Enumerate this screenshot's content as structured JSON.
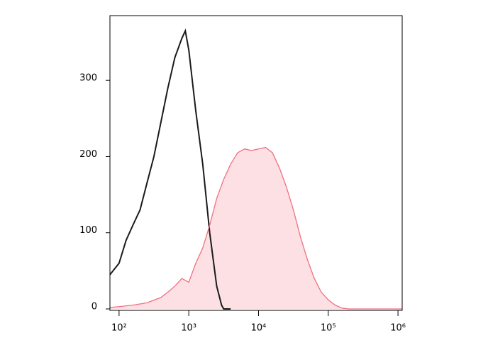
{
  "chart_data": {
    "type": "histogram-overlay",
    "xscale": "log",
    "xlim": [
      74,
      1148154
    ],
    "ylim": [
      0,
      385
    ],
    "xticks": [
      {
        "value": 100,
        "label": "10²"
      },
      {
        "value": 1000,
        "label": "10³"
      },
      {
        "value": 10000,
        "label": "10⁴"
      },
      {
        "value": 100000,
        "label": "10⁵"
      },
      {
        "value": 1000000,
        "label": "10⁶"
      }
    ],
    "yticks": [
      0,
      100,
      200,
      300
    ],
    "series": [
      {
        "color": "#1a1a1a",
        "fill": null,
        "x": [
          74,
          100,
          126,
          158,
          200,
          251,
          316,
          398,
          501,
          631,
          794,
          891,
          1000,
          1122,
          1259,
          1585,
          1995,
          2512,
          2951,
          3162,
          3981
        ],
        "values": [
          45,
          60,
          90,
          110,
          130,
          165,
          200,
          245,
          290,
          330,
          355,
          365,
          340,
          300,
          260,
          190,
          100,
          30,
          5,
          0,
          0
        ]
      },
      {
        "color": "#f07080",
        "fill": "#fde0e3",
        "x": [
          74,
          100,
          158,
          251,
          398,
          501,
          631,
          794,
          1000,
          1259,
          1585,
          1995,
          2512,
          3162,
          3981,
          5012,
          6310,
          7943,
          10000,
          12589,
          15849,
          19953,
          25119,
          31623,
          39811,
          50119,
          63096,
          79433,
          100000,
          125893,
          158489,
          199526,
          1148154
        ],
        "values": [
          2,
          3,
          5,
          8,
          15,
          22,
          30,
          40,
          35,
          60,
          80,
          110,
          145,
          170,
          190,
          205,
          210,
          208,
          210,
          212,
          205,
          185,
          160,
          130,
          95,
          65,
          40,
          22,
          12,
          5,
          1,
          0,
          0
        ]
      }
    ]
  }
}
